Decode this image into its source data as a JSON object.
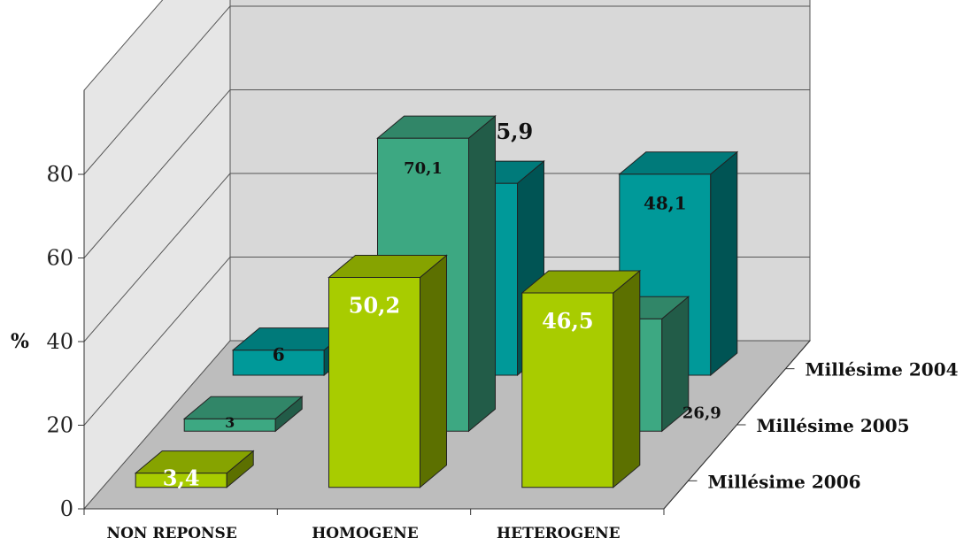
{
  "chart_data": {
    "type": "bar",
    "title": "",
    "ylabel": "%",
    "ylim": [
      0,
      80
    ],
    "yticks": [
      "0",
      "20",
      "40",
      "60",
      "80"
    ],
    "categories": [
      "NON REPONSE",
      "HOMOGENE",
      "HETEROGENE"
    ],
    "series": [
      {
        "name": "Millésime 2004",
        "values": [
          6,
          45.9,
          48.1
        ],
        "labels": [
          "6",
          "45,9",
          "48,1"
        ],
        "color": "#009999"
      },
      {
        "name": "Millésime 2005",
        "values": [
          3,
          70.1,
          26.9
        ],
        "labels": [
          "3",
          "70,1",
          "26,9"
        ],
        "color": "#3da882"
      },
      {
        "name": "Millésime 2006",
        "values": [
          3.4,
          50.2,
          46.5
        ],
        "labels": [
          "3,4",
          "50,2",
          "46,5"
        ],
        "color": "#a8cc00"
      }
    ],
    "grid": true,
    "style": "3d-columns"
  }
}
